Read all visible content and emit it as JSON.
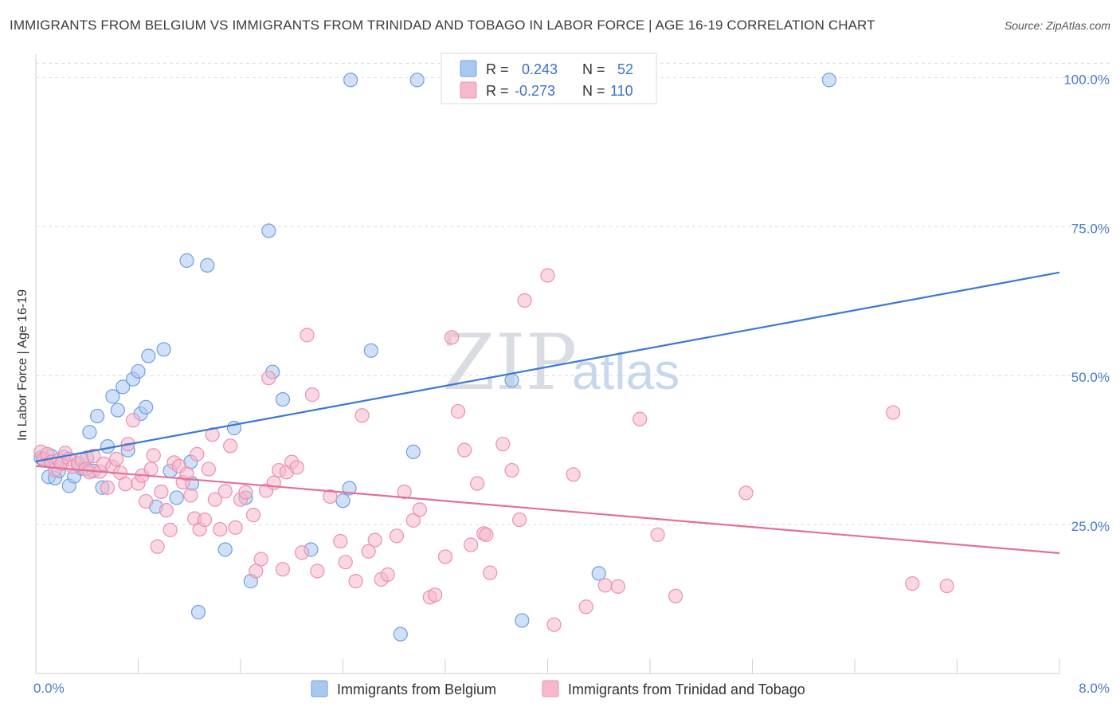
{
  "title": "IMMIGRANTS FROM BELGIUM VS IMMIGRANTS FROM TRINIDAD AND TOBAGO IN LABOR FORCE | AGE 16-19 CORRELATION CHART",
  "source": "Source: ZipAtlas.com",
  "watermark": {
    "zip": "ZIP",
    "atlas": "atlas"
  },
  "colors": {
    "belgium_fill": "#a9c8f0",
    "belgium_stroke": "#6f9fe0",
    "belgium_line": "#3a78d4",
    "trinidad_fill": "#f6b8cc",
    "trinidad_stroke": "#ec8fae",
    "trinidad_line": "#e46f98",
    "tick_text": "#4a7cc9",
    "grid": "#dcdcdc"
  },
  "legend": {
    "rows": [
      {
        "r_label": "R =",
        "r_value": "0.243",
        "n_label": "N =",
        "n_value": "52"
      },
      {
        "r_label": "R =",
        "r_value": "-0.273",
        "n_label": "N =",
        "n_value": "110"
      }
    ]
  },
  "chart_data": {
    "type": "scatter",
    "ylabel": "In Labor Force | Age 16-19",
    "xlabel": "",
    "xlim": [
      0,
      8
    ],
    "ylim": [
      0,
      105
    ],
    "x_tick_labels": [
      {
        "value": 0,
        "label": "0.0%"
      },
      {
        "value": 8,
        "label": "8.0%"
      }
    ],
    "y_tick_labels": [
      {
        "value": 25,
        "label": "25.0%"
      },
      {
        "value": 50,
        "label": "50.0%"
      },
      {
        "value": 75,
        "label": "75.0%"
      },
      {
        "value": 100,
        "label": "100.0%"
      }
    ],
    "series": [
      {
        "name": "Immigrants from Belgium",
        "trend": {
          "x": [
            0,
            8
          ],
          "y": [
            35.6,
            67.3
          ]
        },
        "points": [
          [
            0.04,
            36.2
          ],
          [
            0.06,
            35.8
          ],
          [
            0.1,
            33
          ],
          [
            0.12,
            36.5
          ],
          [
            0.15,
            32.8
          ],
          [
            0.18,
            34
          ],
          [
            0.22,
            36.3
          ],
          [
            0.26,
            31.5
          ],
          [
            0.3,
            33.1
          ],
          [
            0.33,
            35
          ],
          [
            0.36,
            34.4
          ],
          [
            0.4,
            36.2
          ],
          [
            0.42,
            40.5
          ],
          [
            0.45,
            34
          ],
          [
            0.48,
            43.2
          ],
          [
            0.52,
            31.2
          ],
          [
            0.56,
            38.1
          ],
          [
            0.6,
            46.5
          ],
          [
            0.64,
            44.2
          ],
          [
            0.68,
            48.1
          ],
          [
            0.72,
            37.5
          ],
          [
            0.76,
            49.4
          ],
          [
            0.8,
            50.7
          ],
          [
            0.82,
            43.6
          ],
          [
            0.86,
            44.7
          ],
          [
            0.88,
            53.3
          ],
          [
            0.94,
            28
          ],
          [
            1.0,
            54.4
          ],
          [
            1.05,
            34
          ],
          [
            1.1,
            29.5
          ],
          [
            1.18,
            69.3
          ],
          [
            1.21,
            35.5
          ],
          [
            1.22,
            31.9
          ],
          [
            1.27,
            10.3
          ],
          [
            1.34,
            68.5
          ],
          [
            1.48,
            20.8
          ],
          [
            1.55,
            41.2
          ],
          [
            1.64,
            29.5
          ],
          [
            1.68,
            15.5
          ],
          [
            1.82,
            74.3
          ],
          [
            1.85,
            50.6
          ],
          [
            1.93,
            46
          ],
          [
            2.15,
            20.8
          ],
          [
            2.4,
            29
          ],
          [
            2.45,
            31.1
          ],
          [
            2.46,
            99.6
          ],
          [
            2.62,
            54.2
          ],
          [
            2.85,
            6.6
          ],
          [
            2.95,
            37.2
          ],
          [
            2.98,
            99.6
          ],
          [
            3.72,
            49.2
          ],
          [
            3.8,
            8.9
          ],
          [
            4.4,
            16.8
          ],
          [
            6.2,
            99.6
          ]
        ]
      },
      {
        "name": "Immigrants from Trinidad and Tobago",
        "trend": {
          "x": [
            0,
            8
          ],
          "y": [
            34.8,
            20.2
          ]
        },
        "points": [
          [
            0.04,
            37.2
          ],
          [
            0.06,
            36
          ],
          [
            0.09,
            36.8
          ],
          [
            0.12,
            35.5
          ],
          [
            0.15,
            34.2
          ],
          [
            0.18,
            35.8
          ],
          [
            0.2,
            35.2
          ],
          [
            0.23,
            37
          ],
          [
            0.26,
            36
          ],
          [
            0.29,
            34.7
          ],
          [
            0.33,
            35.3
          ],
          [
            0.36,
            35.9
          ],
          [
            0.39,
            34.3
          ],
          [
            0.42,
            33.8
          ],
          [
            0.45,
            36.5
          ],
          [
            0.5,
            33.9
          ],
          [
            0.53,
            35.2
          ],
          [
            0.56,
            31.2
          ],
          [
            0.6,
            34.7
          ],
          [
            0.63,
            36
          ],
          [
            0.66,
            33.7
          ],
          [
            0.7,
            31.8
          ],
          [
            0.72,
            38.5
          ],
          [
            0.76,
            42.5
          ],
          [
            0.8,
            31.9
          ],
          [
            0.83,
            33.2
          ],
          [
            0.86,
            28.9
          ],
          [
            0.9,
            34.3
          ],
          [
            0.92,
            36.6
          ],
          [
            0.95,
            21.3
          ],
          [
            0.98,
            30.5
          ],
          [
            1.02,
            27.4
          ],
          [
            1.05,
            24.1
          ],
          [
            1.08,
            35.4
          ],
          [
            1.12,
            34.8
          ],
          [
            1.15,
            32.1
          ],
          [
            1.18,
            33.5
          ],
          [
            1.21,
            29.9
          ],
          [
            1.24,
            26
          ],
          [
            1.26,
            36.8
          ],
          [
            1.28,
            24.2
          ],
          [
            1.32,
            25.8
          ],
          [
            1.35,
            34.3
          ],
          [
            1.38,
            40.1
          ],
          [
            1.4,
            29.2
          ],
          [
            1.44,
            24.2
          ],
          [
            1.48,
            30.6
          ],
          [
            1.52,
            38.2
          ],
          [
            1.56,
            24.5
          ],
          [
            1.6,
            29.2
          ],
          [
            1.64,
            30.4
          ],
          [
            1.7,
            26.6
          ],
          [
            1.72,
            17.2
          ],
          [
            1.76,
            19.2
          ],
          [
            1.8,
            30.7
          ],
          [
            1.82,
            49.6
          ],
          [
            1.86,
            32
          ],
          [
            1.9,
            34.1
          ],
          [
            1.93,
            17.5
          ],
          [
            1.96,
            33.8
          ],
          [
            2.0,
            35.5
          ],
          [
            2.04,
            34.6
          ],
          [
            2.08,
            20.3
          ],
          [
            2.12,
            56.8
          ],
          [
            2.16,
            46.8
          ],
          [
            2.2,
            17.2
          ],
          [
            2.3,
            29.7
          ],
          [
            2.38,
            22.2
          ],
          [
            2.42,
            18.7
          ],
          [
            2.5,
            15.5
          ],
          [
            2.55,
            43.3
          ],
          [
            2.6,
            20.5
          ],
          [
            2.65,
            22.4
          ],
          [
            2.7,
            15.8
          ],
          [
            2.75,
            16.6
          ],
          [
            2.82,
            23.1
          ],
          [
            2.88,
            30.5
          ],
          [
            2.95,
            25.7
          ],
          [
            3.0,
            27.5
          ],
          [
            3.08,
            12.8
          ],
          [
            3.12,
            13.2
          ],
          [
            3.2,
            19.6
          ],
          [
            3.25,
            56.4
          ],
          [
            3.3,
            44
          ],
          [
            3.35,
            37.5
          ],
          [
            3.4,
            21.6
          ],
          [
            3.45,
            31.9
          ],
          [
            3.5,
            23.5
          ],
          [
            3.52,
            23.3
          ],
          [
            3.55,
            16.9
          ],
          [
            3.65,
            38.5
          ],
          [
            3.72,
            34.1
          ],
          [
            3.78,
            25.8
          ],
          [
            3.82,
            62.6
          ],
          [
            4.0,
            66.8
          ],
          [
            4.05,
            8.2
          ],
          [
            4.2,
            33.4
          ],
          [
            4.3,
            11.2
          ],
          [
            4.45,
            14.8
          ],
          [
            4.55,
            14.6
          ],
          [
            4.72,
            42.7
          ],
          [
            4.86,
            23.3
          ],
          [
            5.0,
            13
          ],
          [
            5.55,
            30.3
          ],
          [
            6.7,
            43.8
          ],
          [
            6.85,
            15.1
          ],
          [
            7.12,
            14.7
          ]
        ]
      }
    ],
    "grid": true,
    "legend_position": "top-center"
  },
  "bottom_legend": [
    {
      "label": "Immigrants from Belgium"
    },
    {
      "label": "Immigrants from Trinidad and Tobago"
    }
  ]
}
